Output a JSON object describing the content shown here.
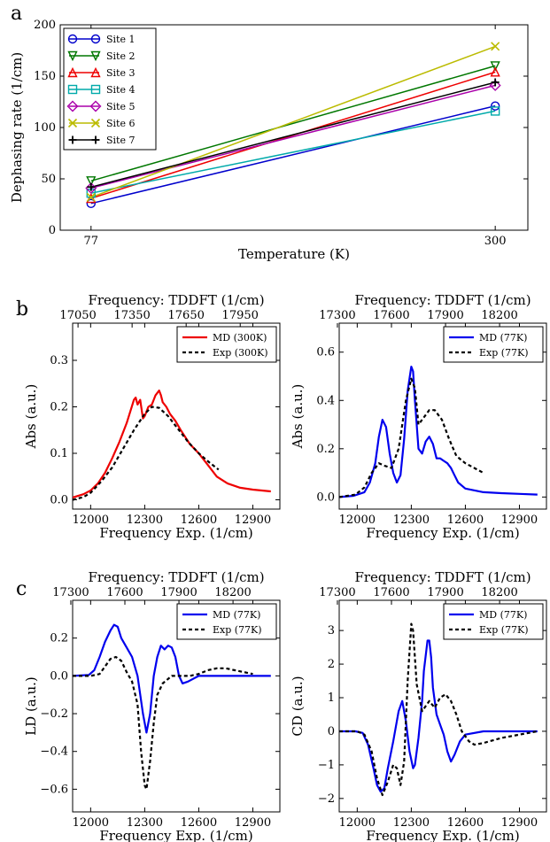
{
  "panel_labels": [
    "a",
    "b",
    "c"
  ],
  "chart_data": [
    {
      "id": "a",
      "type": "line",
      "xlabel": "Temperature (K)",
      "ylabel": "Dephasing rate (1/cm)",
      "xlim": [
        60,
        318
      ],
      "ylim": [
        0,
        200
      ],
      "xticks": [
        77,
        300
      ],
      "yticks": [
        0,
        50,
        100,
        150,
        200
      ],
      "x": [
        77,
        300
      ],
      "legend_position": "top-left",
      "series": [
        {
          "name": "Site 1",
          "color": "#0000cc",
          "marker": "circle",
          "values": [
            26,
            121
          ]
        },
        {
          "name": "Site 2",
          "color": "#007700",
          "marker": "triangle-down",
          "values": [
            48,
            160
          ]
        },
        {
          "name": "Site 3",
          "color": "#ee0000",
          "marker": "triangle-up",
          "values": [
            31,
            154
          ]
        },
        {
          "name": "Site 4",
          "color": "#00aaaa",
          "marker": "square",
          "values": [
            36,
            116
          ]
        },
        {
          "name": "Site 5",
          "color": "#aa00aa",
          "marker": "diamond",
          "values": [
            41,
            141
          ]
        },
        {
          "name": "Site 6",
          "color": "#bbbb00",
          "marker": "x",
          "values": [
            32,
            179
          ]
        },
        {
          "name": "Site 7",
          "color": "#000000",
          "marker": "plus",
          "values": [
            42,
            144
          ]
        }
      ]
    },
    {
      "id": "b-left",
      "type": "line",
      "xlabel": "Frequency Exp. (1/cm)",
      "top_xlabel": "Frequency: TDDFT (1/cm)",
      "ylabel": "Abs (a.u.)",
      "xlim": [
        11900,
        13050
      ],
      "ylim": [
        -0.02,
        0.38
      ],
      "xticks": [
        12000,
        12300,
        12600,
        12900
      ],
      "top_xticks": [
        17050,
        17350,
        17650,
        17950
      ],
      "top_xticks_at": [
        11930,
        12230,
        12530,
        12830
      ],
      "yticks": [
        0.0,
        0.1,
        0.2,
        0.3
      ],
      "ytick_labels": [
        "0.0",
        "0.1",
        "0.2",
        "0.3"
      ],
      "legend_position": "top-right",
      "series": [
        {
          "name": "MD (300K)",
          "color": "#ee0000",
          "style": "solid",
          "x": [
            11900,
            11960,
            12000,
            12040,
            12080,
            12120,
            12160,
            12200,
            12220,
            12240,
            12250,
            12260,
            12275,
            12290,
            12300,
            12320,
            12340,
            12360,
            12380,
            12390,
            12400,
            12420,
            12440,
            12470,
            12500,
            12550,
            12600,
            12650,
            12700,
            12760,
            12830,
            12900,
            13000
          ],
          "values": [
            0.005,
            0.012,
            0.02,
            0.035,
            0.058,
            0.09,
            0.125,
            0.165,
            0.19,
            0.215,
            0.22,
            0.205,
            0.215,
            0.175,
            0.18,
            0.2,
            0.205,
            0.225,
            0.235,
            0.225,
            0.21,
            0.2,
            0.185,
            0.17,
            0.15,
            0.12,
            0.1,
            0.075,
            0.05,
            0.035,
            0.026,
            0.022,
            0.018
          ]
        },
        {
          "name": "Exp (300K)",
          "color": "#000000",
          "style": "dashed",
          "x": [
            11900,
            11960,
            12000,
            12060,
            12120,
            12180,
            12240,
            12300,
            12340,
            12380,
            12430,
            12480,
            12540,
            12600,
            12660,
            12710
          ],
          "values": [
            0.0,
            0.006,
            0.015,
            0.04,
            0.07,
            0.11,
            0.15,
            0.185,
            0.2,
            0.198,
            0.18,
            0.155,
            0.125,
            0.1,
            0.08,
            0.065
          ]
        }
      ]
    },
    {
      "id": "b-right",
      "type": "line",
      "xlabel": "Frequency Exp. (1/cm)",
      "top_xlabel": "Frequency: TDDFT (1/cm)",
      "ylabel": "Abs (a.u.)",
      "xlim": [
        11900,
        13050
      ],
      "ylim": [
        -0.05,
        0.72
      ],
      "xticks": [
        12000,
        12300,
        12600,
        12900
      ],
      "top_xticks": [
        17300,
        17600,
        17900,
        18200
      ],
      "top_xticks_at": [
        11890,
        12190,
        12490,
        12790
      ],
      "yticks": [
        0.0,
        0.2,
        0.4,
        0.6
      ],
      "ytick_labels": [
        "0.0",
        "0.2",
        "0.4",
        "0.6"
      ],
      "legend_position": "top-right",
      "series": [
        {
          "name": "MD (77K)",
          "color": "#0000ee",
          "style": "solid",
          "x": [
            11900,
            11980,
            12040,
            12070,
            12100,
            12120,
            12140,
            12160,
            12180,
            12200,
            12220,
            12240,
            12260,
            12280,
            12300,
            12310,
            12320,
            12340,
            12360,
            12380,
            12400,
            12420,
            12440,
            12460,
            12480,
            12500,
            12520,
            12540,
            12560,
            12600,
            12700,
            12800,
            12900,
            13000
          ],
          "values": [
            0.0,
            0.005,
            0.02,
            0.06,
            0.14,
            0.25,
            0.32,
            0.29,
            0.18,
            0.1,
            0.06,
            0.09,
            0.24,
            0.44,
            0.54,
            0.52,
            0.4,
            0.2,
            0.18,
            0.23,
            0.25,
            0.22,
            0.16,
            0.16,
            0.15,
            0.14,
            0.12,
            0.09,
            0.06,
            0.035,
            0.02,
            0.016,
            0.013,
            0.01
          ]
        },
        {
          "name": "Exp (77K)",
          "color": "#000000",
          "style": "dashed",
          "x": [
            11900,
            11990,
            12040,
            12080,
            12120,
            12150,
            12190,
            12230,
            12270,
            12300,
            12320,
            12340,
            12370,
            12400,
            12430,
            12470,
            12510,
            12550,
            12600,
            12650,
            12700
          ],
          "values": [
            0.0,
            0.01,
            0.04,
            0.1,
            0.14,
            0.13,
            0.12,
            0.2,
            0.4,
            0.49,
            0.45,
            0.3,
            0.33,
            0.36,
            0.36,
            0.32,
            0.24,
            0.17,
            0.14,
            0.12,
            0.1
          ]
        }
      ]
    },
    {
      "id": "c-left",
      "type": "line",
      "xlabel": "Frequency Exp. (1/cm)",
      "top_xlabel": "Frequency: TDDFT (1/cm)",
      "ylabel": "LD (a.u.)",
      "xlim": [
        11900,
        13050
      ],
      "ylim": [
        -0.72,
        0.4
      ],
      "xticks": [
        12000,
        12300,
        12600,
        12900
      ],
      "top_xticks": [
        17300,
        17600,
        17900,
        18200
      ],
      "top_xticks_at": [
        11890,
        12190,
        12490,
        12790
      ],
      "yticks": [
        -0.6,
        -0.4,
        -0.2,
        0.0,
        0.2
      ],
      "ytick_labels": [
        "−0.6",
        "−0.4",
        "−0.2",
        "0.0",
        "0.2"
      ],
      "legend_position": "top-right",
      "series": [
        {
          "name": "MD (77K)",
          "color": "#0000ee",
          "style": "solid",
          "x": [
            11900,
            11990,
            12020,
            12050,
            12080,
            12110,
            12130,
            12150,
            12170,
            12200,
            12230,
            12260,
            12290,
            12310,
            12330,
            12350,
            12370,
            12390,
            12410,
            12430,
            12450,
            12470,
            12490,
            12510,
            12540,
            12600,
            12700,
            13000
          ],
          "values": [
            0.0,
            0.005,
            0.03,
            0.1,
            0.18,
            0.24,
            0.27,
            0.26,
            0.2,
            0.15,
            0.1,
            0.0,
            -0.2,
            -0.3,
            -0.2,
            0.0,
            0.1,
            0.16,
            0.14,
            0.16,
            0.15,
            0.1,
            0.0,
            -0.04,
            -0.03,
            0.0,
            0.0,
            0.0
          ]
        },
        {
          "name": "Exp (77K)",
          "color": "#000000",
          "style": "dashed",
          "x": [
            11900,
            12000,
            12050,
            12080,
            12110,
            12140,
            12170,
            12200,
            12230,
            12260,
            12280,
            12300,
            12310,
            12330,
            12350,
            12370,
            12400,
            12450,
            12500,
            12550,
            12600,
            12650,
            12700,
            12750,
            12800,
            12850,
            12900
          ],
          "values": [
            0.0,
            0.0,
            0.01,
            0.05,
            0.09,
            0.1,
            0.08,
            0.02,
            -0.03,
            -0.15,
            -0.4,
            -0.58,
            -0.6,
            -0.45,
            -0.25,
            -0.1,
            -0.04,
            0.0,
            0.0,
            0.0,
            0.01,
            0.03,
            0.04,
            0.04,
            0.03,
            0.02,
            0.01
          ]
        }
      ]
    },
    {
      "id": "c-right",
      "type": "line",
      "xlabel": "Frequency Exp. (1/cm)",
      "top_xlabel": "Frequency: TDDFT (1/cm)",
      "ylabel": "CD (a.u.)",
      "xlim": [
        11900,
        13050
      ],
      "ylim": [
        -2.4,
        3.9
      ],
      "xticks": [
        12000,
        12300,
        12600,
        12900
      ],
      "top_xticks": [
        17300,
        17600,
        17900,
        18200
      ],
      "top_xticks_at": [
        11890,
        12190,
        12490,
        12790
      ],
      "yticks": [
        -2,
        -1,
        0,
        1,
        2,
        3
      ],
      "ytick_labels": [
        "−2",
        "−1",
        "0",
        "1",
        "2",
        "3"
      ],
      "legend_position": "top-right",
      "series": [
        {
          "name": "MD (77K)",
          "color": "#0000ee",
          "style": "solid",
          "x": [
            11900,
            11990,
            12030,
            12060,
            12090,
            12110,
            12130,
            12150,
            12170,
            12200,
            12230,
            12250,
            12270,
            12290,
            12310,
            12320,
            12340,
            12360,
            12370,
            12390,
            12400,
            12410,
            12420,
            12440,
            12460,
            12480,
            12500,
            12520,
            12540,
            12570,
            12600,
            12700,
            13000
          ],
          "values": [
            0.0,
            0.0,
            -0.05,
            -0.4,
            -1.1,
            -1.6,
            -1.8,
            -1.7,
            -1.1,
            -0.3,
            0.6,
            0.9,
            0.3,
            -0.6,
            -1.1,
            -1.0,
            -0.2,
            0.9,
            1.8,
            2.7,
            2.7,
            2.2,
            1.3,
            0.5,
            0.2,
            -0.1,
            -0.6,
            -0.9,
            -0.7,
            -0.3,
            -0.1,
            0.0,
            0.0
          ]
        },
        {
          "name": "Exp (77K)",
          "color": "#000000",
          "style": "dashed",
          "x": [
            11900,
            12000,
            12040,
            12080,
            12110,
            12140,
            12170,
            12200,
            12220,
            12240,
            12260,
            12280,
            12300,
            12310,
            12330,
            12360,
            12400,
            12430,
            12460,
            12490,
            12520,
            12550,
            12580,
            12620,
            12650,
            12700,
            12800,
            12900,
            13000
          ],
          "values": [
            0.0,
            0.0,
            -0.1,
            -0.6,
            -1.4,
            -1.9,
            -1.5,
            -1.0,
            -1.1,
            -1.6,
            -0.9,
            1.5,
            3.2,
            3.0,
            1.4,
            0.6,
            0.9,
            0.7,
            1.0,
            1.1,
            0.9,
            0.5,
            0.0,
            -0.3,
            -0.4,
            -0.35,
            -0.2,
            -0.1,
            0.0
          ]
        }
      ]
    }
  ]
}
